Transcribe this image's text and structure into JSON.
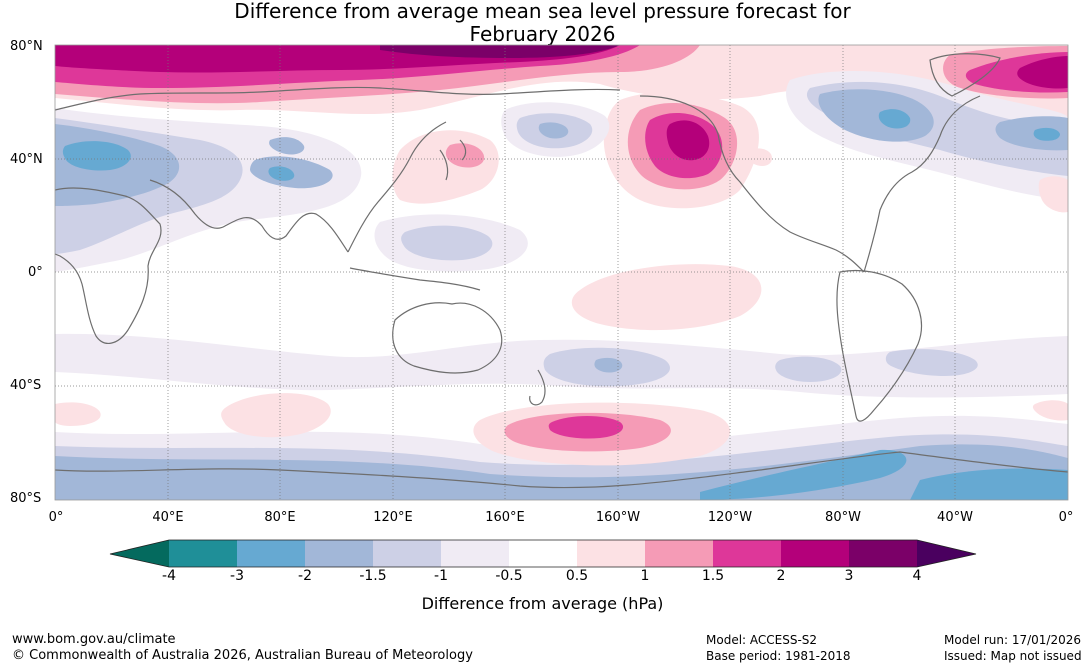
{
  "title_line1": "Difference from average mean sea level pressure forecast for",
  "title_line2": "February 2026",
  "lat_labels": [
    "80°N",
    "40°N",
    "0°",
    "40°S",
    "80°S"
  ],
  "lon_labels": [
    "0°",
    "40°E",
    "80°E",
    "120°E",
    "160°E",
    "160°W",
    "120°W",
    "80°W",
    "40°W",
    "0°"
  ],
  "colorbar": {
    "labels": [
      "-4",
      "-3",
      "-2",
      "-1.5",
      "-1",
      "-0.5",
      "0.5",
      "1",
      "1.5",
      "2",
      "3",
      "4"
    ],
    "title": "Difference from average (hPa)",
    "colors": {
      "below_min": "#046a5e",
      "bins": [
        "#1f8f98",
        "#66a9d2",
        "#a2b7d8",
        "#cdd0e6",
        "#f0ebf4",
        "#ffffff",
        "#fce1e4",
        "#f59bb6",
        "#de3799",
        "#b4007a",
        "#7b0068"
      ],
      "above_max": "#4a005f"
    }
  },
  "footer": {
    "website": "www.bom.gov.au/climate",
    "copyright": "© Commonwealth of Australia 2026, Australian Bureau of Meteorology",
    "model": "Model: ACCESS-S2",
    "base_period": "Base period: 1981-2018",
    "model_run": "Model run: 17/01/2026",
    "issued": "Issued: Map not issued"
  }
}
